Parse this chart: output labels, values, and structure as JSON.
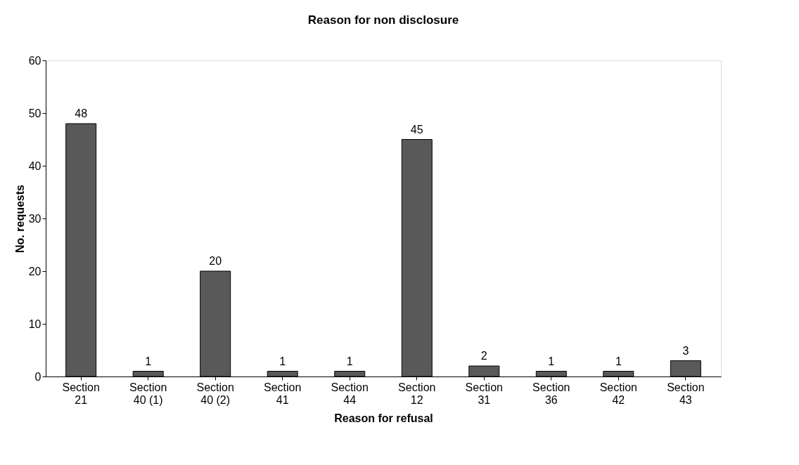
{
  "chart_data": {
    "type": "bar",
    "title": "Reason for non disclosure",
    "xlabel": "Reason for refusal",
    "ylabel": "No. requests",
    "categories": [
      "Section 21",
      "Section 40 (1)",
      "Section 40 (2)",
      "Section 41",
      "Section 44",
      "Section 12",
      "Section 31",
      "Section 36",
      "Section 42",
      "Section 43"
    ],
    "values": [
      48,
      1,
      20,
      1,
      1,
      45,
      2,
      1,
      1,
      3
    ],
    "color": "#595959",
    "ylim": [
      0,
      60
    ],
    "yticks": [
      0,
      10,
      20,
      30,
      40,
      50,
      60
    ],
    "grid": false,
    "data_labels": true
  }
}
